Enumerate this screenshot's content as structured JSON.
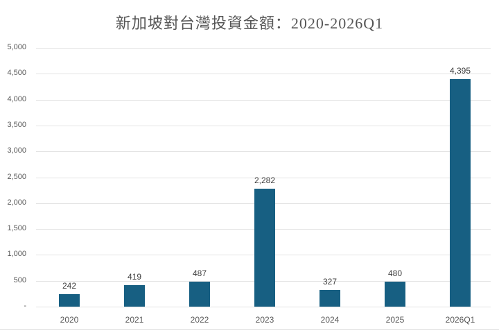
{
  "chart_data": {
    "type": "bar",
    "title": "新加坡對台灣投資金額：2020-2026Q1",
    "xlabel": "",
    "ylabel": "",
    "categories": [
      "2020",
      "2021",
      "2022",
      "2023",
      "2024",
      "2025",
      "2026Q1"
    ],
    "values": [
      242,
      419,
      487,
      2282,
      327,
      480,
      4395
    ],
    "value_labels": [
      "242",
      "419",
      "487",
      "2,282",
      "327",
      "480",
      "4,395"
    ],
    "ylim": [
      0,
      5000
    ],
    "yticks": [
      "-",
      "500",
      "1,000",
      "1,500",
      "2,000",
      "2,500",
      "3,000",
      "3,500",
      "4,000",
      "4,500",
      "5,000"
    ],
    "grid": true,
    "legend": null,
    "bar_color": "#175f82"
  }
}
